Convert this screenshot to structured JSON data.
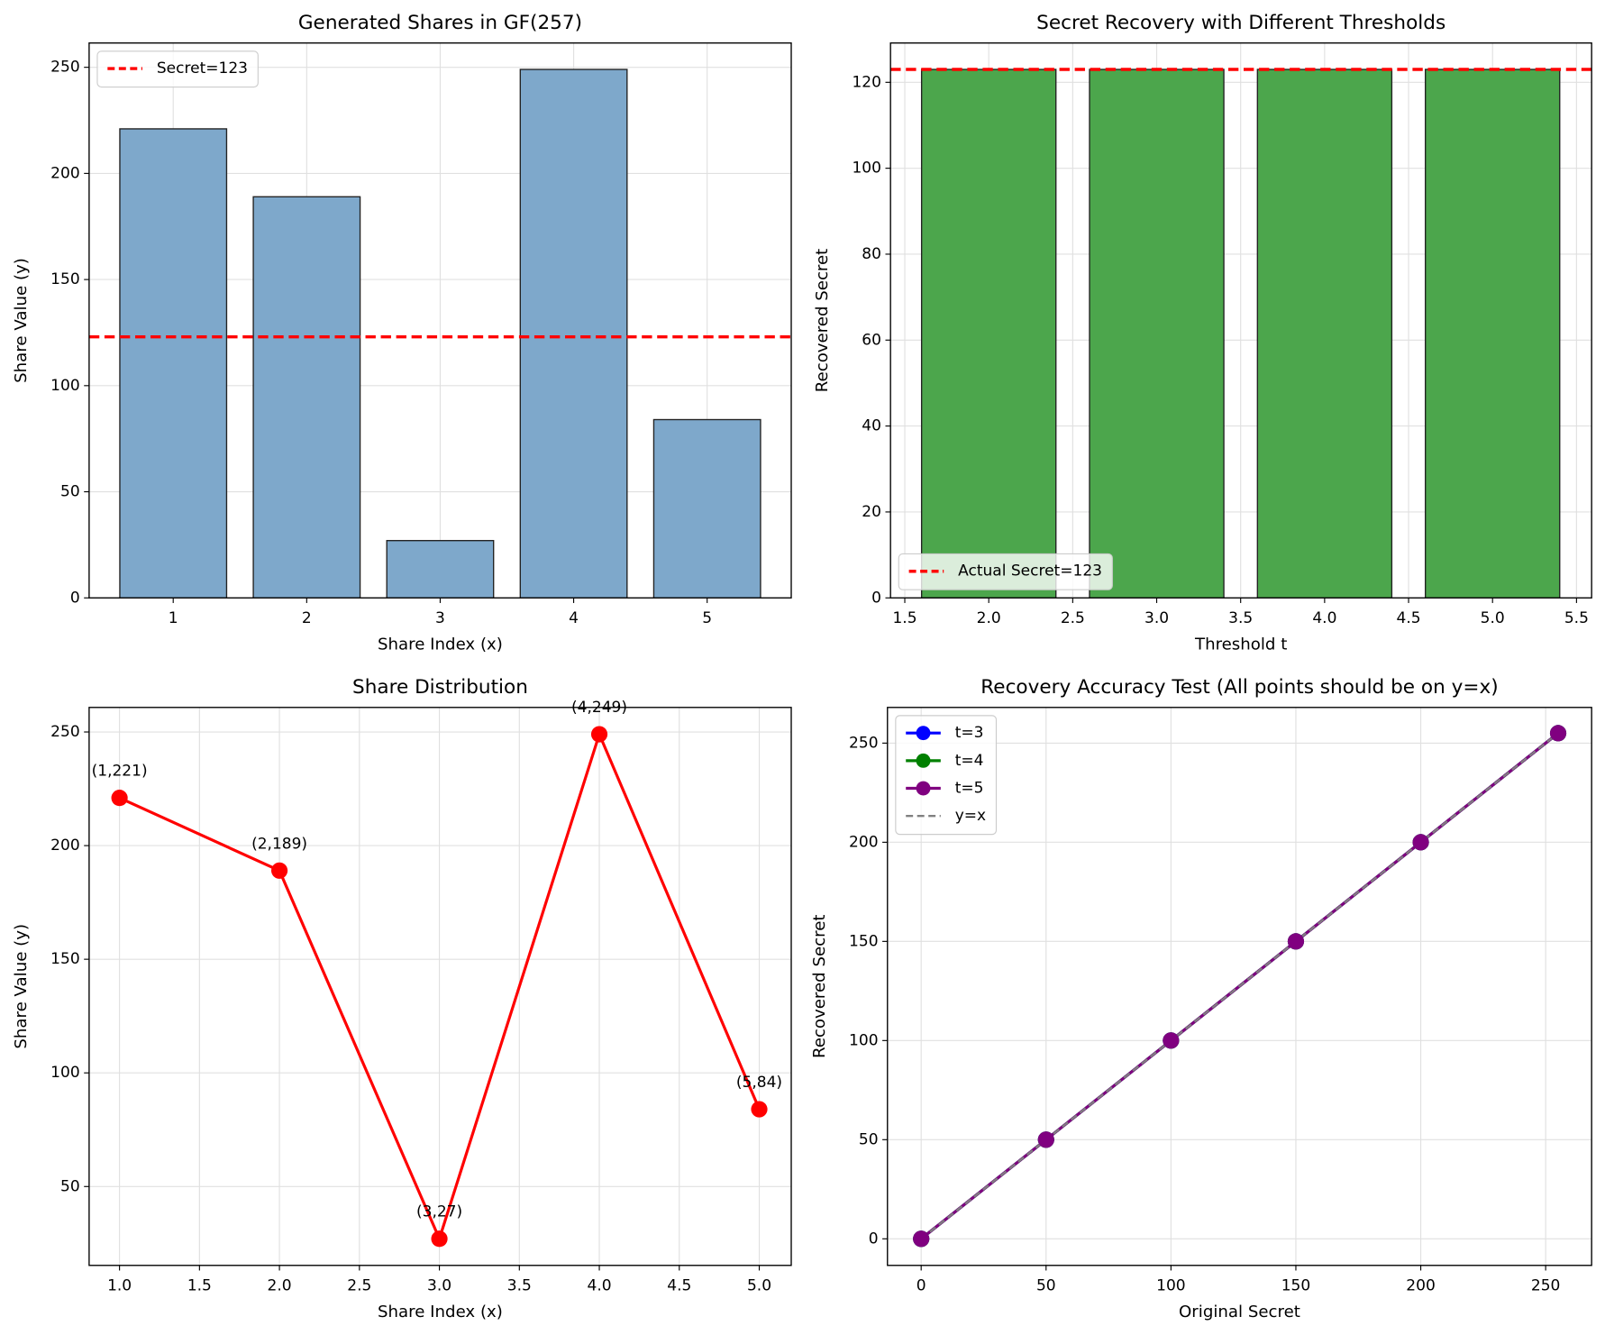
{
  "chart_data": [
    {
      "type": "bar",
      "title": "Generated Shares in GF(257)",
      "xlabel": "Share Index (x)",
      "ylabel": "Share Value (y)",
      "x": [
        1,
        2,
        3,
        4,
        5
      ],
      "values": [
        221,
        189,
        27,
        249,
        84
      ],
      "color": "#7ea8cb",
      "edgecolor": "#222222",
      "xlim": [
        0.37,
        5.63
      ],
      "ylim": [
        0,
        261.45
      ],
      "xticks": [
        1,
        2,
        3,
        4,
        5
      ],
      "yticks": [
        0,
        50,
        100,
        150,
        200,
        250
      ],
      "grid": true,
      "legend": "upper left",
      "reference_line": {
        "name": "Secret=123",
        "value": 123,
        "color": "#ff0000"
      }
    },
    {
      "type": "bar",
      "title": "Secret Recovery with Different Thresholds",
      "xlabel": "Threshold t",
      "ylabel": "Recovered Secret",
      "x": [
        2,
        3,
        4,
        5
      ],
      "values": [
        123,
        123,
        123,
        123
      ],
      "color": "#4ca64c",
      "edgecolor": "#222222",
      "xlim": [
        1.415,
        5.59
      ],
      "ylim": [
        0,
        129.15
      ],
      "xticks": [
        1.5,
        {
          "value": 2,
          "label": "2.0"
        },
        2.5,
        {
          "value": 3,
          "label": "3.0"
        },
        3.5,
        {
          "value": 4,
          "label": "4.0"
        },
        4.5,
        {
          "value": 5,
          "label": "5.0"
        },
        5.5
      ],
      "yticks": [
        0,
        20,
        40,
        60,
        80,
        100,
        120
      ],
      "grid": true,
      "legend": "lower left",
      "reference_line": {
        "name": "Actual Secret=123",
        "value": 123,
        "color": "#ff0000"
      }
    },
    {
      "type": "line",
      "title": "Share Distribution",
      "xlabel": "Share Index (x)",
      "ylabel": "Share Value (y)",
      "x": [
        1,
        2,
        3,
        4,
        5
      ],
      "values": [
        221,
        189,
        27,
        249,
        84
      ],
      "value_labels": [
        "(1,221)",
        "(2,189)",
        "(3,27)",
        "(4,249)",
        "(5,84)"
      ],
      "color": "#ff0000",
      "xlim": [
        0.81,
        5.2
      ],
      "ylim": [
        15.3,
        260.8
      ],
      "xticks": [
        {
          "value": 1,
          "label": "1.0"
        },
        1.5,
        {
          "value": 2,
          "label": "2.0"
        },
        2.5,
        {
          "value": 3,
          "label": "3.0"
        },
        3.5,
        {
          "value": 4,
          "label": "4.0"
        },
        4.5,
        {
          "value": 5,
          "label": "5.0"
        }
      ],
      "yticks": [
        50,
        100,
        150,
        200,
        250
      ],
      "grid": true
    },
    {
      "type": "line",
      "title": "Recovery Accuracy Test (All points should be on y=x)",
      "xlabel": "Original Secret",
      "ylabel": "Recovered Secret",
      "x": [
        0,
        50,
        100,
        150,
        200,
        255
      ],
      "series": [
        {
          "name": "t=3",
          "color": "#0000ff",
          "values": [
            0,
            50,
            100,
            150,
            200,
            255
          ]
        },
        {
          "name": "t=4",
          "color": "#008000",
          "values": [
            0,
            50,
            100,
            150,
            200,
            255
          ]
        },
        {
          "name": "t=5",
          "color": "#800080",
          "values": [
            0,
            50,
            100,
            150,
            200,
            255
          ]
        },
        {
          "name": "y=x",
          "color": "#808080",
          "values": [
            0,
            50,
            100,
            150,
            200,
            255
          ],
          "dashed": true,
          "markers": false
        }
      ],
      "xlim": [
        -13.5,
        268.4
      ],
      "ylim": [
        -13.4,
        268
      ],
      "xticks": [
        0,
        50,
        100,
        150,
        200,
        250
      ],
      "yticks": [
        0,
        50,
        100,
        150,
        200,
        250
      ],
      "grid": true,
      "legend": "upper left"
    }
  ]
}
